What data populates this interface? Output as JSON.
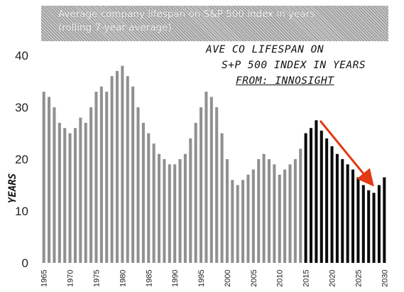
{
  "chart_data": {
    "type": "bar",
    "title": "Average company lifespan on S&P 500 index in years",
    "subtitle": "(rolling 7-year average)",
    "ylabel": "YEARS",
    "ylim": [
      0,
      40
    ],
    "yticks": [
      0,
      10,
      20,
      30,
      40
    ],
    "x": [
      1965,
      1966,
      1967,
      1968,
      1969,
      1970,
      1971,
      1972,
      1973,
      1974,
      1975,
      1976,
      1977,
      1978,
      1979,
      1980,
      1981,
      1982,
      1983,
      1984,
      1985,
      1986,
      1987,
      1988,
      1989,
      1990,
      1991,
      1992,
      1993,
      1994,
      1995,
      1996,
      1997,
      1998,
      1999,
      2000,
      2001,
      2002,
      2003,
      2004,
      2005,
      2006,
      2007,
      2008,
      2009,
      2010,
      2011,
      2012,
      2013,
      2014,
      2015,
      2016,
      2017,
      2018,
      2019,
      2020,
      2021,
      2022,
      2023,
      2024,
      2025,
      2026,
      2027,
      2028,
      2029,
      2030
    ],
    "values": [
      33,
      32,
      30,
      27,
      26,
      25,
      26,
      28,
      27,
      30,
      33,
      34,
      33,
      36,
      37,
      38,
      36,
      34,
      30,
      27,
      25,
      23,
      21,
      20,
      19,
      19,
      20,
      21,
      24,
      27,
      30,
      33,
      32,
      30,
      25,
      20,
      16,
      15,
      16,
      17,
      18,
      20,
      21,
      20,
      19,
      17,
      18,
      19,
      20,
      22,
      25,
      26,
      27.5,
      25.5,
      24,
      22.5,
      21,
      20,
      19,
      18,
      16.5,
      15,
      14,
      13.5,
      15,
      16.5
    ],
    "xtick_labels": [
      "1965",
      "1970",
      "1975",
      "1980",
      "1985",
      "1990",
      "1995",
      "2000",
      "2005",
      "2010",
      "2015",
      "2020",
      "2025",
      "2030"
    ],
    "projection_start": 2015,
    "colors": {
      "historical": "#7d7d7d",
      "projected": "#0a0a0a",
      "arrow": "#e23a12"
    },
    "annotation_lines": [
      "AVE CO LIFESPAN ON",
      "S+P 500 INDEX IN YEARS",
      "FROM: INNOSIGHT"
    ],
    "grid": false,
    "legend": "none"
  }
}
